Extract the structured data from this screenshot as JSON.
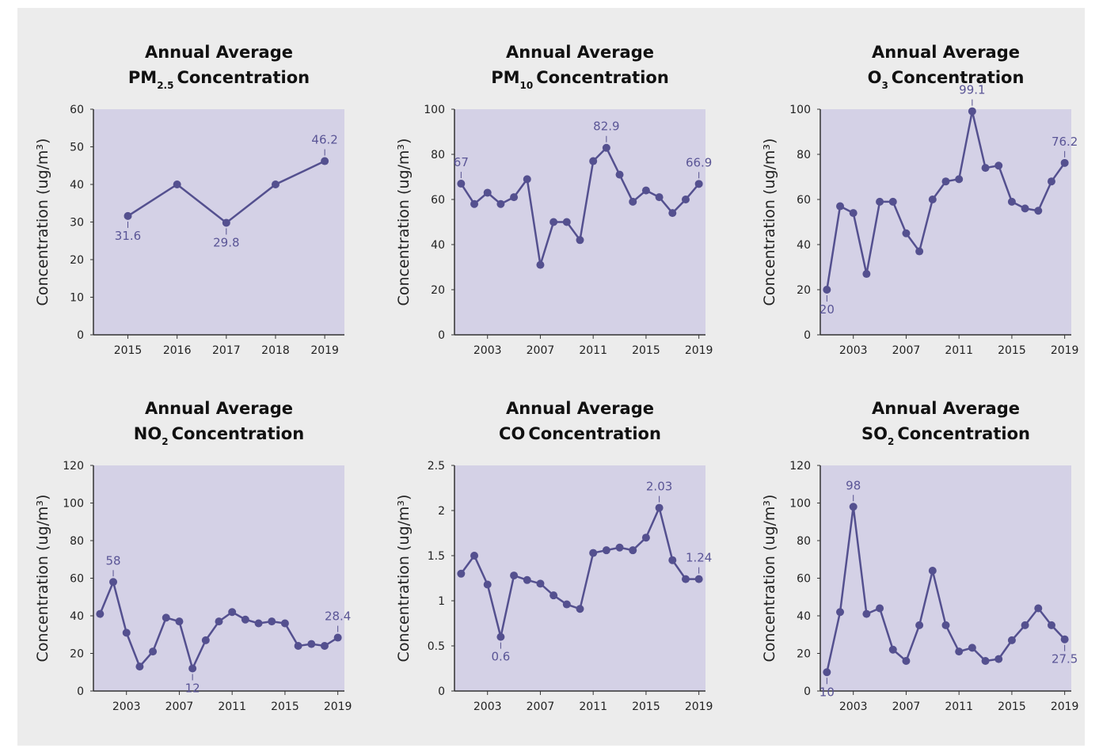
{
  "chart_data": [
    {
      "type": "line",
      "title": {
        "line1": "Annual Average",
        "pollutant": "PM",
        "subscript": "2.5",
        "rest": "Concentration"
      },
      "y_label": "Concentration (ug/m³)",
      "color": "#54508f",
      "background": "#d4d1e6",
      "x": [
        2015,
        2016,
        2017,
        2018,
        2019
      ],
      "values": [
        31.6,
        40,
        29.8,
        40,
        46.2
      ],
      "value_labels": [
        "31.6",
        null,
        "29.8",
        null,
        "46.2"
      ],
      "xlim": [
        2014.3,
        2019.4
      ],
      "xticks": [
        2015,
        2016,
        2017,
        2018,
        2019
      ],
      "ylim": [
        0,
        60
      ],
      "yticks": [
        0,
        10,
        20,
        30,
        40,
        50,
        60
      ]
    },
    {
      "type": "line",
      "title": {
        "line1": "Annual Average",
        "pollutant": "PM",
        "subscript": "10",
        "rest": "Concentration"
      },
      "y_label": "Concentration (ug/m³)",
      "color": "#54508f",
      "background": "#d4d1e6",
      "x": [
        2001,
        2002,
        2003,
        2004,
        2005,
        2006,
        2007,
        2008,
        2009,
        2010,
        2011,
        2012,
        2013,
        2014,
        2015,
        2016,
        2017,
        2018,
        2019
      ],
      "values": [
        67,
        58,
        63,
        58,
        61,
        69,
        31,
        50,
        50,
        42,
        77,
        82.9,
        71,
        59,
        64,
        61,
        54,
        60,
        66.9
      ],
      "value_labels": [
        "67",
        null,
        null,
        null,
        null,
        null,
        null,
        null,
        null,
        null,
        null,
        "82.9",
        null,
        null,
        null,
        null,
        null,
        null,
        "66.9"
      ],
      "xlim": [
        2000.5,
        2019.5
      ],
      "xticks": [
        2003,
        2007,
        2011,
        2015,
        2019
      ],
      "ylim": [
        0,
        100
      ],
      "yticks": [
        0,
        20,
        40,
        60,
        80,
        100
      ]
    },
    {
      "type": "line",
      "title": {
        "line1": "Annual Average",
        "pollutant": "O",
        "subscript": "3",
        "rest": "Concentration"
      },
      "y_label": "Concentration (ug/m³)",
      "color": "#54508f",
      "background": "#d4d1e6",
      "x": [
        2001,
        2002,
        2003,
        2004,
        2005,
        2006,
        2007,
        2008,
        2009,
        2010,
        2011,
        2012,
        2013,
        2014,
        2015,
        2016,
        2017,
        2018,
        2019
      ],
      "values": [
        20,
        57,
        54,
        27,
        59,
        59,
        45,
        37,
        60,
        68,
        69,
        99.1,
        74,
        75,
        59,
        56,
        55,
        68,
        76.2
      ],
      "value_labels": [
        "20",
        null,
        null,
        null,
        null,
        null,
        null,
        null,
        null,
        null,
        null,
        "99.1",
        null,
        null,
        null,
        null,
        null,
        null,
        "76.2"
      ],
      "xlim": [
        2000.5,
        2019.5
      ],
      "xticks": [
        2003,
        2007,
        2011,
        2015,
        2019
      ],
      "ylim": [
        0,
        100
      ],
      "yticks": [
        0,
        20,
        40,
        60,
        80,
        100
      ]
    },
    {
      "type": "line",
      "title": {
        "line1": "Annual Average",
        "pollutant": "NO",
        "subscript": "2",
        "rest": "Concentration"
      },
      "y_label": "Concentration (ug/m³)",
      "color": "#54508f",
      "background": "#d4d1e6",
      "x": [
        2001,
        2002,
        2003,
        2004,
        2005,
        2006,
        2007,
        2008,
        2009,
        2010,
        2011,
        2012,
        2013,
        2014,
        2015,
        2016,
        2017,
        2018,
        2019
      ],
      "values": [
        41,
        58,
        31,
        13,
        21,
        39,
        37,
        12,
        27,
        37,
        42,
        38,
        36,
        37,
        36,
        24,
        25,
        24,
        28.4
      ],
      "value_labels": [
        null,
        "58",
        null,
        null,
        null,
        null,
        null,
        "12",
        null,
        null,
        null,
        null,
        null,
        null,
        null,
        null,
        null,
        null,
        "28.4"
      ],
      "xlim": [
        2000.5,
        2019.5
      ],
      "xticks": [
        2003,
        2007,
        2011,
        2015,
        2019
      ],
      "ylim": [
        0,
        120
      ],
      "yticks": [
        0,
        20,
        40,
        60,
        80,
        100,
        120
      ]
    },
    {
      "type": "line",
      "title": {
        "line1": "Annual Average",
        "pollutant": "CO",
        "rest": "Concentration"
      },
      "y_label": "Concentration (ug/m³)",
      "color": "#54508f",
      "background": "#d4d1e6",
      "x": [
        2001,
        2002,
        2003,
        2004,
        2005,
        2006,
        2007,
        2008,
        2009,
        2010,
        2011,
        2012,
        2013,
        2014,
        2015,
        2016,
        2017,
        2018,
        2019
      ],
      "values": [
        1.3,
        1.5,
        1.18,
        0.6,
        1.28,
        1.23,
        1.19,
        1.06,
        0.96,
        0.91,
        1.53,
        1.56,
        1.59,
        1.56,
        1.7,
        2.03,
        1.45,
        1.24,
        1.24
      ],
      "value_labels": [
        null,
        null,
        null,
        "0.6",
        null,
        null,
        null,
        null,
        null,
        null,
        null,
        null,
        null,
        null,
        null,
        "2.03",
        null,
        null,
        "1.24"
      ],
      "xlim": [
        2000.5,
        2019.5
      ],
      "xticks": [
        2003,
        2007,
        2011,
        2015,
        2019
      ],
      "ylim": [
        0,
        2.5
      ],
      "yticks": [
        0,
        0.5,
        1,
        1.5,
        2,
        2.5
      ]
    },
    {
      "type": "line",
      "title": {
        "line1": "Annual Average",
        "pollutant": "SO",
        "subscript": "2",
        "rest": "Concentration"
      },
      "y_label": "Concentration (ug/m³)",
      "color": "#54508f",
      "background": "#d4d1e6",
      "x": [
        2001,
        2002,
        2003,
        2004,
        2005,
        2006,
        2007,
        2008,
        2009,
        2010,
        2011,
        2012,
        2013,
        2014,
        2015,
        2016,
        2017,
        2018,
        2019
      ],
      "values": [
        10,
        42,
        98,
        41,
        44,
        22,
        16,
        35,
        64,
        35,
        21,
        23,
        16,
        17,
        27,
        35,
        44,
        35,
        27.5
      ],
      "value_labels": [
        "10",
        null,
        "98",
        null,
        null,
        null,
        null,
        null,
        null,
        null,
        null,
        null,
        null,
        null,
        null,
        null,
        null,
        null,
        "27.5"
      ],
      "xlim": [
        2000.5,
        2019.5
      ],
      "xticks": [
        2003,
        2007,
        2011,
        2015,
        2019
      ],
      "ylim": [
        0,
        120
      ],
      "yticks": [
        0,
        20,
        40,
        60,
        80,
        100,
        120
      ]
    }
  ]
}
